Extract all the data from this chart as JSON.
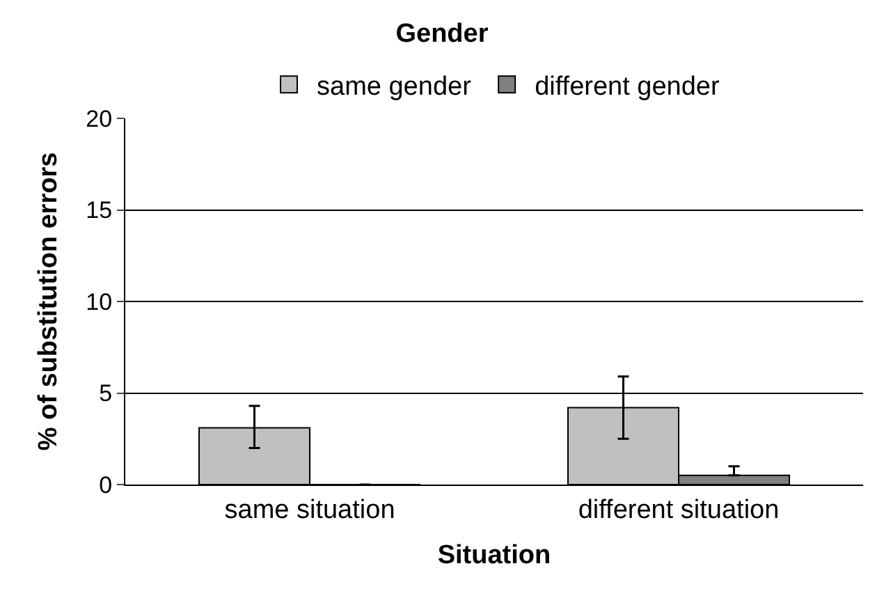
{
  "chart_data": {
    "type": "bar",
    "title": "Gender",
    "xlabel": "Situation",
    "ylabel": "% of substitution errors",
    "categories": [
      "same situation",
      "different situation"
    ],
    "series": [
      {
        "name": "same gender",
        "color": "#c0c0c0",
        "values": [
          3.1,
          4.2
        ],
        "errors": [
          [
            2.0,
            4.3
          ],
          [
            2.5,
            5.9
          ]
        ]
      },
      {
        "name": "different gender",
        "color": "#808080",
        "values": [
          0,
          0.5
        ],
        "errors": [
          null,
          [
            0.5,
            1.0
          ]
        ]
      }
    ],
    "ylim": [
      0,
      20
    ],
    "yticks": [
      0,
      5,
      10,
      15,
      20
    ],
    "grid": "y",
    "legend": "top"
  }
}
